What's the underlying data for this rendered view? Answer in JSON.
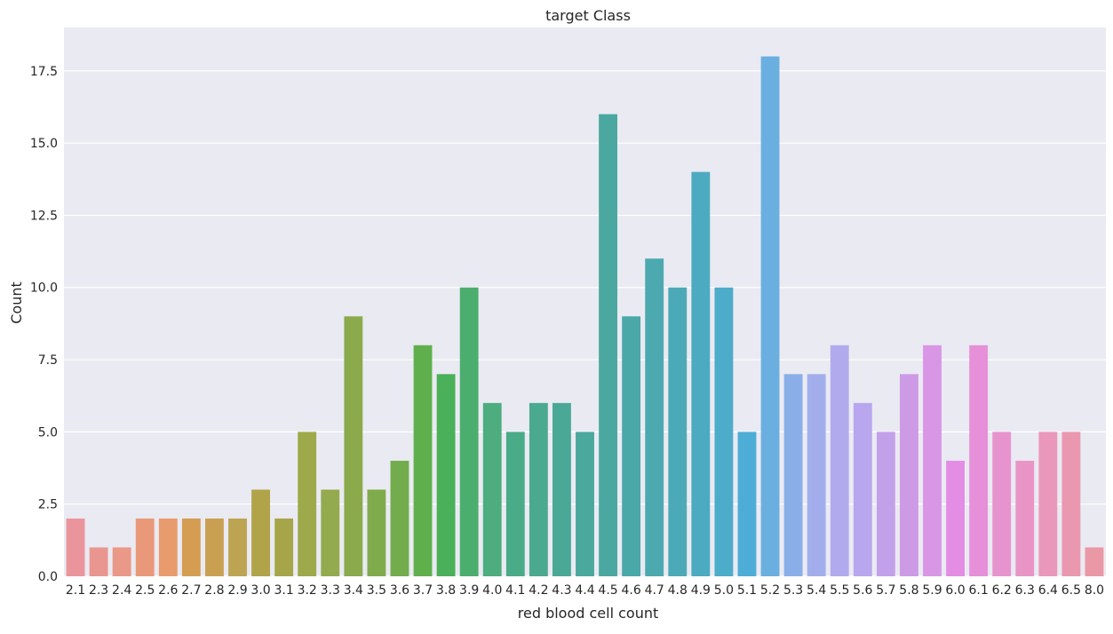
{
  "chart_data": {
    "type": "bar",
    "title": "target Class",
    "xlabel": "red blood cell count",
    "ylabel": "Count",
    "ylim": [
      0,
      19
    ],
    "y_ticks": [
      "0.0",
      "2.5",
      "5.0",
      "7.5",
      "10.0",
      "12.5",
      "15.0",
      "17.5"
    ],
    "grid": true,
    "background": "#eaeaf2",
    "categories": [
      "2.1",
      "2.3",
      "2.4",
      "2.5",
      "2.6",
      "2.7",
      "2.8",
      "2.9",
      "3.0",
      "3.1",
      "3.2",
      "3.3",
      "3.4",
      "3.5",
      "3.6",
      "3.7",
      "3.8",
      "3.9",
      "4.0",
      "4.1",
      "4.2",
      "4.3",
      "4.4",
      "4.5",
      "4.6",
      "4.7",
      "4.8",
      "4.9",
      "5.0",
      "5.1",
      "5.2",
      "5.3",
      "5.4",
      "5.5",
      "5.6",
      "5.7",
      "5.8",
      "5.9",
      "6.0",
      "6.1",
      "6.2",
      "6.3",
      "6.4",
      "6.5",
      "8.0"
    ],
    "values": [
      2,
      1,
      1,
      2,
      2,
      2,
      2,
      2,
      3,
      2,
      5,
      3,
      9,
      3,
      4,
      8,
      7,
      10,
      6,
      5,
      6,
      6,
      5,
      16,
      9,
      11,
      10,
      14,
      10,
      5,
      18,
      7,
      7,
      8,
      6,
      5,
      7,
      8,
      4,
      8,
      5,
      4,
      5,
      5,
      1
    ],
    "colors": [
      "#ea959b",
      "#ea9690",
      "#ea9887",
      "#e9997a",
      "#e89b6d",
      "#d59d52",
      "#c9a052",
      "#bca452",
      "#b1a349",
      "#a7a549",
      "#9ea94c",
      "#93aa4e",
      "#8aaa4c",
      "#80ab4c",
      "#73ac4c",
      "#5fb04d",
      "#4bb05a",
      "#4cae6e",
      "#4dad7e",
      "#4aab88",
      "#4ba990",
      "#4aa896",
      "#4aa89c",
      "#4aa8a1",
      "#4ba8a8",
      "#4ca9b0",
      "#4ca9b8",
      "#4caac1",
      "#4cacca",
      "#4eadd6",
      "#6bafe0",
      "#8aafe8",
      "#a2aeec",
      "#b1abee",
      "#b8a7ee",
      "#c3a1ea",
      "#cd9be6",
      "#d996e5",
      "#e38de4",
      "#e590d8",
      "#e793ce",
      "#e895c5",
      "#e997bb",
      "#ea98b0",
      "#ea98a5"
    ]
  }
}
